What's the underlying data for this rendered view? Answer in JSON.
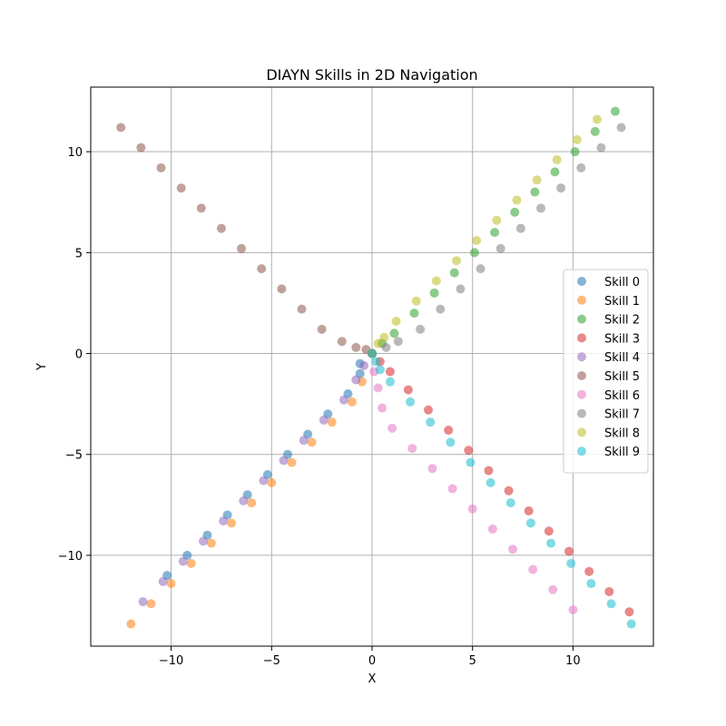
{
  "chart_data": {
    "type": "scatter",
    "title": "DIAYN Skills in 2D Navigation",
    "xlabel": "X",
    "ylabel": "Y",
    "xlim": [
      -14,
      14
    ],
    "ylim": [
      -14.5,
      13.2
    ],
    "xticks": [
      -10,
      -5,
      0,
      5,
      10
    ],
    "xtick_labels": [
      "−10",
      "−5",
      "0",
      "5",
      "10"
    ],
    "yticks": [
      -10,
      -5,
      0,
      5,
      10
    ],
    "ytick_labels": [
      "−10",
      "−5",
      "0",
      "5",
      "10"
    ],
    "grid": true,
    "legend_position": "center-right",
    "point_alpha": 0.55,
    "series": [
      {
        "name": "Skill 0",
        "color": "#1f77b4",
        "points": [
          [
            0,
            0
          ],
          [
            -0.6,
            -0.5
          ],
          [
            -0.6,
            -1
          ],
          [
            -1.2,
            -2
          ],
          [
            -2.2,
            -3
          ],
          [
            -3.2,
            -4
          ],
          [
            -4.2,
            -5
          ],
          [
            -5.2,
            -6
          ],
          [
            -6.2,
            -7
          ],
          [
            -7.2,
            -8
          ],
          [
            -8.2,
            -9
          ],
          [
            -9.2,
            -10
          ],
          [
            -10.2,
            -11
          ]
        ]
      },
      {
        "name": "Skill 1",
        "color": "#ff7f0e",
        "points": [
          [
            0,
            0
          ],
          [
            -0.5,
            -1.4
          ],
          [
            -1,
            -2.4
          ],
          [
            -2,
            -3.4
          ],
          [
            -3,
            -4.4
          ],
          [
            -4,
            -5.4
          ],
          [
            -5,
            -6.4
          ],
          [
            -6,
            -7.4
          ],
          [
            -7,
            -8.4
          ],
          [
            -8,
            -9.4
          ],
          [
            -9,
            -10.4
          ],
          [
            -10,
            -11.4
          ],
          [
            -11,
            -12.4
          ],
          [
            -12,
            -13.4
          ]
        ]
      },
      {
        "name": "Skill 2",
        "color": "#2ca02c",
        "points": [
          [
            0,
            0
          ],
          [
            0.5,
            0.5
          ],
          [
            1.1,
            1
          ],
          [
            2.1,
            2
          ],
          [
            3.1,
            3
          ],
          [
            4.1,
            4
          ],
          [
            5.1,
            5
          ],
          [
            6.1,
            6
          ],
          [
            7.1,
            7
          ],
          [
            8.1,
            8
          ],
          [
            9.1,
            9
          ],
          [
            10.1,
            10
          ],
          [
            11.1,
            11
          ],
          [
            12.1,
            12
          ]
        ]
      },
      {
        "name": "Skill 3",
        "color": "#d62728",
        "points": [
          [
            0,
            0
          ],
          [
            0.4,
            -0.4
          ],
          [
            0.9,
            -0.9
          ],
          [
            1.8,
            -1.8
          ],
          [
            2.8,
            -2.8
          ],
          [
            3.8,
            -3.8
          ],
          [
            4.8,
            -4.8
          ],
          [
            5.8,
            -5.8
          ],
          [
            6.8,
            -6.8
          ],
          [
            7.8,
            -7.8
          ],
          [
            8.8,
            -8.8
          ],
          [
            9.8,
            -9.8
          ],
          [
            10.8,
            -10.8
          ],
          [
            11.8,
            -11.8
          ],
          [
            12.8,
            -12.8
          ]
        ]
      },
      {
        "name": "Skill 4",
        "color": "#9467bd",
        "points": [
          [
            0,
            0
          ],
          [
            -0.4,
            -0.6
          ],
          [
            -0.8,
            -1.3
          ],
          [
            -1.4,
            -2.3
          ],
          [
            -2.4,
            -3.3
          ],
          [
            -3.4,
            -4.3
          ],
          [
            -4.4,
            -5.3
          ],
          [
            -5.4,
            -6.3
          ],
          [
            -6.4,
            -7.3
          ],
          [
            -7.4,
            -8.3
          ],
          [
            -8.4,
            -9.3
          ],
          [
            -9.4,
            -10.3
          ],
          [
            -10.4,
            -11.3
          ],
          [
            -11.4,
            -12.3
          ]
        ]
      },
      {
        "name": "Skill 5",
        "color": "#8c564b",
        "points": [
          [
            0,
            0
          ],
          [
            -0.3,
            0.2
          ],
          [
            -0.8,
            0.3
          ],
          [
            -1.5,
            0.6
          ],
          [
            -2.5,
            1.2
          ],
          [
            -3.5,
            2.2
          ],
          [
            -4.5,
            3.2
          ],
          [
            -5.5,
            4.2
          ],
          [
            -6.5,
            5.2
          ],
          [
            -7.5,
            6.2
          ],
          [
            -8.5,
            7.2
          ],
          [
            -9.5,
            8.2
          ],
          [
            -10.5,
            9.2
          ],
          [
            -11.5,
            10.2
          ],
          [
            -12.5,
            11.2
          ]
        ]
      },
      {
        "name": "Skill 6",
        "color": "#e377c2",
        "points": [
          [
            0,
            0
          ],
          [
            0.1,
            -0.9
          ],
          [
            0.3,
            -1.7
          ],
          [
            0.5,
            -2.7
          ],
          [
            1,
            -3.7
          ],
          [
            2,
            -4.7
          ],
          [
            3,
            -5.7
          ],
          [
            4,
            -6.7
          ],
          [
            5,
            -7.7
          ],
          [
            6,
            -8.7
          ],
          [
            7,
            -9.7
          ],
          [
            8,
            -10.7
          ],
          [
            9,
            -11.7
          ],
          [
            10,
            -12.7
          ]
        ]
      },
      {
        "name": "Skill 7",
        "color": "#7f7f7f",
        "points": [
          [
            0,
            0
          ],
          [
            0.7,
            0.3
          ],
          [
            1.3,
            0.6
          ],
          [
            2.4,
            1.2
          ],
          [
            3.4,
            2.2
          ],
          [
            4.4,
            3.2
          ],
          [
            5.4,
            4.2
          ],
          [
            6.4,
            5.2
          ],
          [
            7.4,
            6.2
          ],
          [
            8.4,
            7.2
          ],
          [
            9.4,
            8.2
          ],
          [
            10.4,
            9.2
          ],
          [
            11.4,
            10.2
          ],
          [
            12.4,
            11.2
          ]
        ]
      },
      {
        "name": "Skill 8",
        "color": "#bcbd22",
        "points": [
          [
            0,
            0
          ],
          [
            0.3,
            0.5
          ],
          [
            0.6,
            0.8
          ],
          [
            1.2,
            1.6
          ],
          [
            2.2,
            2.6
          ],
          [
            3.2,
            3.6
          ],
          [
            4.2,
            4.6
          ],
          [
            5.2,
            5.6
          ],
          [
            6.2,
            6.6
          ],
          [
            7.2,
            7.6
          ],
          [
            8.2,
            8.6
          ],
          [
            9.2,
            9.6
          ],
          [
            10.2,
            10.6
          ],
          [
            11.2,
            11.6
          ]
        ]
      },
      {
        "name": "Skill 9",
        "color": "#17becf",
        "points": [
          [
            0,
            0
          ],
          [
            0.2,
            -0.4
          ],
          [
            0.4,
            -0.8
          ],
          [
            0.9,
            -1.4
          ],
          [
            1.9,
            -2.4
          ],
          [
            2.9,
            -3.4
          ],
          [
            3.9,
            -4.4
          ],
          [
            4.9,
            -5.4
          ],
          [
            5.9,
            -6.4
          ],
          [
            6.9,
            -7.4
          ],
          [
            7.9,
            -8.4
          ],
          [
            8.9,
            -9.4
          ],
          [
            9.9,
            -10.4
          ],
          [
            10.9,
            -11.4
          ],
          [
            11.9,
            -12.4
          ],
          [
            12.9,
            -13.4
          ]
        ]
      }
    ]
  }
}
